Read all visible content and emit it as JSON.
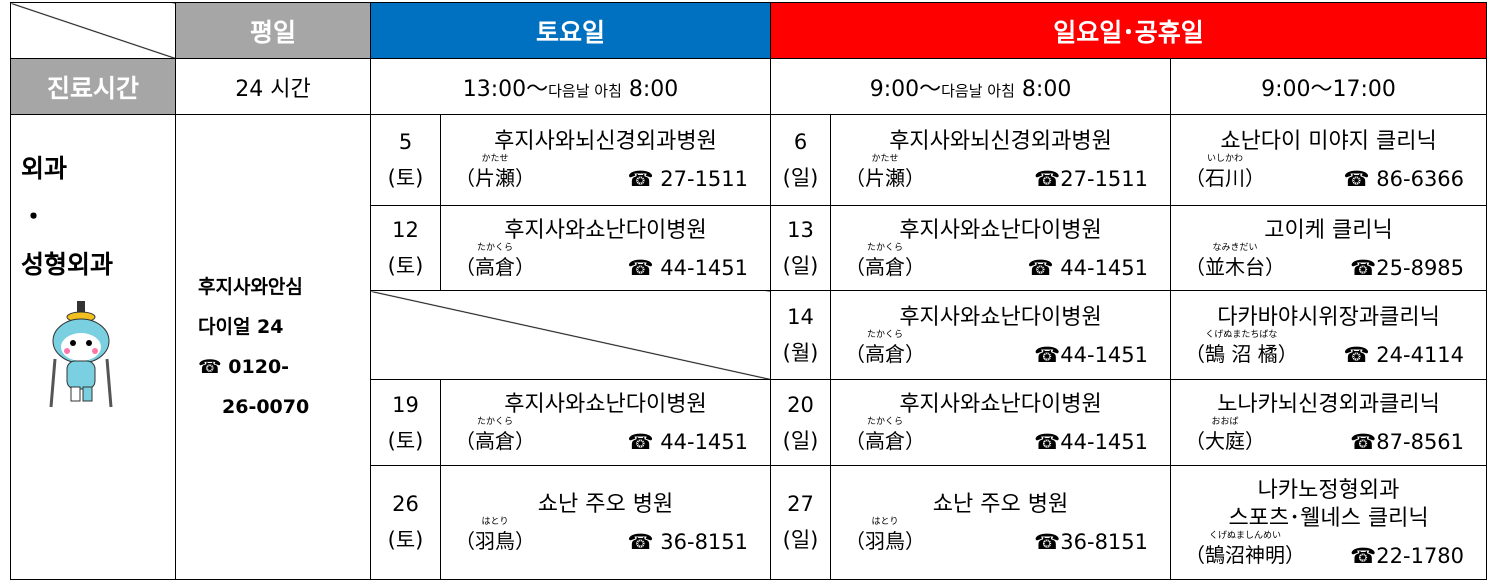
{
  "header": {
    "weekday": "평일",
    "saturday": "토요일",
    "sunday": "일요일･공휴일"
  },
  "hours": {
    "label": "진료시간",
    "weekday": "24 시간",
    "saturday": [
      "13:00～",
      "다음날 아침",
      "8:00"
    ],
    "sunday": [
      "9:00～",
      "다음날 아침",
      "8:00"
    ],
    "holiday": "9:00～17:00"
  },
  "department": [
    "외과",
    "・",
    "성형외과"
  ],
  "weekday_service": [
    "후지사와안심",
    "다이얼 24",
    "☎ 0120-",
    "26-0070"
  ],
  "rows": [
    {
      "sat": {
        "day": "5",
        "dow": "(토)",
        "name": [
          "후지사와뇌신경외과병원"
        ],
        "area": "（片瀬）",
        "ruby": "かたせ",
        "tel": "☎ 27-1511"
      },
      "sun": {
        "day": "6",
        "dow": "(일)",
        "name": [
          "후지사와뇌신경외과병원"
        ],
        "area": "（片瀬）",
        "ruby": "かたせ",
        "tel": "☎27-1511"
      },
      "holiday": {
        "name": [
          "쇼난다이 미야지 클리닉"
        ],
        "area": "（石川）",
        "ruby": "いしかわ",
        "tel": "☎ 86-6366"
      }
    },
    {
      "sat": {
        "day": "12",
        "dow": "(토)",
        "name": [
          "후지사와쇼난다이병원"
        ],
        "area": "（高倉）",
        "ruby": "たかくら",
        "tel": "☎ 44-1451"
      },
      "sun": {
        "day": "13",
        "dow": "(일)",
        "name": [
          "후지사와쇼난다이병원"
        ],
        "area": "（高倉）",
        "ruby": "たかくら",
        "tel": "☎ 44-1451"
      },
      "holiday": {
        "name": [
          "고이케 클리닉"
        ],
        "area": "（並木台）",
        "ruby": "なみきだい",
        "tel": "☎25-8985"
      }
    },
    {
      "sat": null,
      "sun": {
        "day": "14",
        "dow": "(월)",
        "name": [
          "후지사와쇼난다이병원"
        ],
        "area": "（高倉）",
        "ruby": "たかくら",
        "tel": "☎44-1451"
      },
      "holiday": {
        "name": [
          "다카바야시위장과클리닉"
        ],
        "area": "（鵠 沼 橘）",
        "ruby": "くげぬまたちばな",
        "tel": "☎ 24-4114"
      }
    },
    {
      "sat": {
        "day": "19",
        "dow": "(토)",
        "name": [
          "후지사와쇼난다이병원"
        ],
        "area": "（高倉）",
        "ruby": "たかくら",
        "tel": "☎ 44-1451"
      },
      "sun": {
        "day": "20",
        "dow": "(일)",
        "name": [
          "후지사와쇼난다이병원"
        ],
        "area": "（高倉）",
        "ruby": "たかくら",
        "tel": "☎44-1451"
      },
      "holiday": {
        "name": [
          "노나카뇌신경외과클리닉"
        ],
        "area": "（大庭）",
        "ruby": "おおば",
        "tel": "☎87-8561"
      }
    },
    {
      "sat": {
        "day": "26",
        "dow": "(토)",
        "name": [
          "쇼난 주오 병원"
        ],
        "area": "（羽鳥）",
        "ruby": "はとり",
        "tel": "☎ 36-8151"
      },
      "sun": {
        "day": "27",
        "dow": "(일)",
        "name": [
          "쇼난 주오 병원"
        ],
        "area": "（羽鳥）",
        "ruby": "はとり",
        "tel": "☎36-8151"
      },
      "holiday": {
        "name": [
          "나카노정형외과",
          "스포츠･웰네스 클리닉"
        ],
        "area": "（鵠沼神明）",
        "ruby": "くげぬましんめい",
        "tel": "☎22-1780"
      }
    }
  ]
}
